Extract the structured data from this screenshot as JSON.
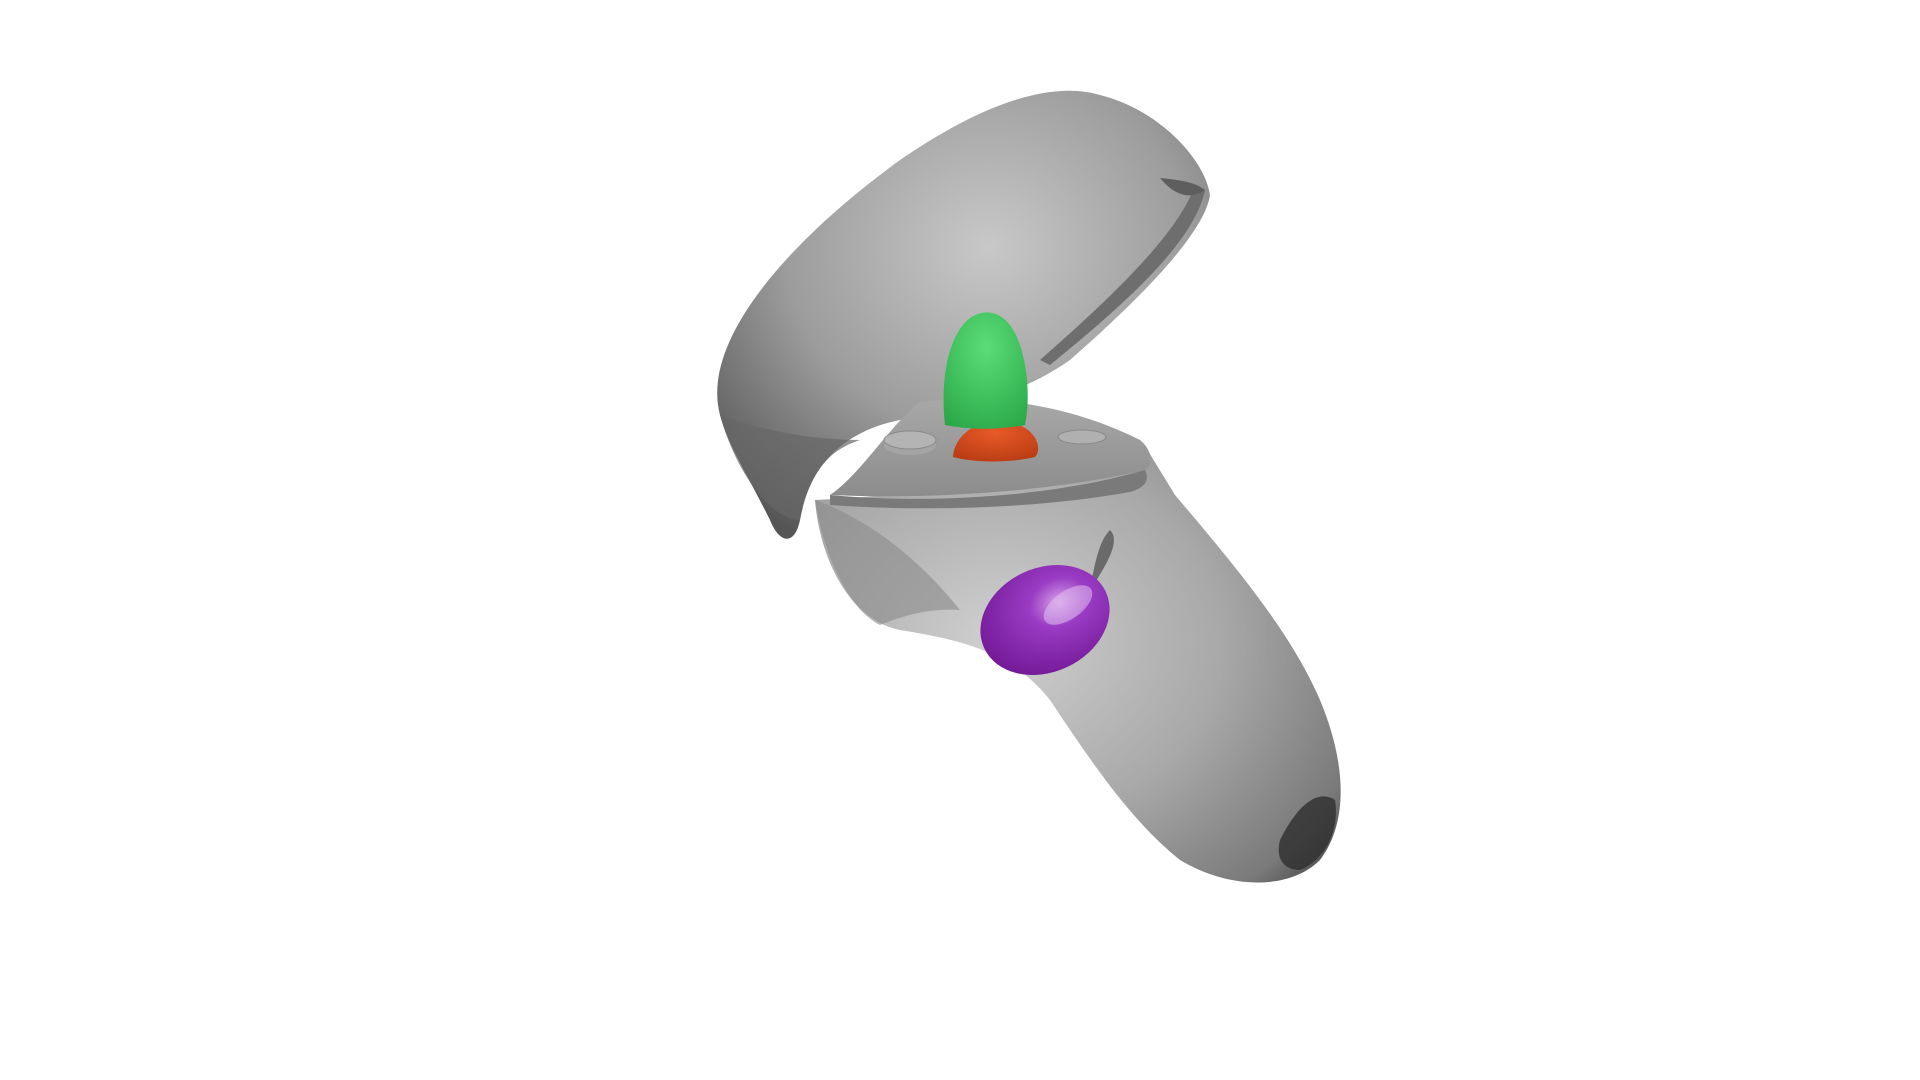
{
  "scene": {
    "background": "#ffffff",
    "subject": "vr-motion-controller",
    "colors": {
      "body_light": "#c4c4c4",
      "body_mid": "#9a9a9a",
      "body_dark": "#4a4a4a",
      "thumbstick": "#3cc65a",
      "button_red": "#d84a1c",
      "trigger_purple": "#8a1fb0"
    }
  }
}
